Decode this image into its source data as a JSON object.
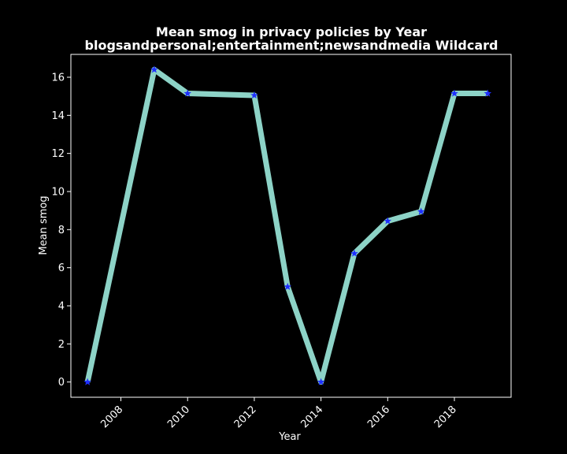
{
  "chart_data": {
    "type": "line",
    "title_line1": "Mean smog in privacy policies by Year",
    "title_line2": "blogsandpersonal;entertainment;newsandmedia Wildcard",
    "xlabel": "Year",
    "ylabel": "Mean smog",
    "xlim": [
      2006.5,
      2019.7
    ],
    "ylim": [
      -0.8,
      17.2
    ],
    "x_ticks": [
      2008,
      2010,
      2012,
      2014,
      2016,
      2018
    ],
    "y_ticks": [
      0,
      2,
      4,
      6,
      8,
      10,
      12,
      14,
      16
    ],
    "grid": false,
    "series": [
      {
        "x": [
          2007,
          2009,
          2010,
          2012,
          2013,
          2014,
          2015,
          2016,
          2017,
          2018,
          2019
        ],
        "y": [
          0,
          16.4,
          15.15,
          15.05,
          5.0,
          0,
          6.75,
          8.45,
          8.95,
          15.15,
          15.15
        ],
        "line_color": "#8dd3c7",
        "marker_color": "#1f2fff",
        "marker": "star"
      }
    ]
  }
}
